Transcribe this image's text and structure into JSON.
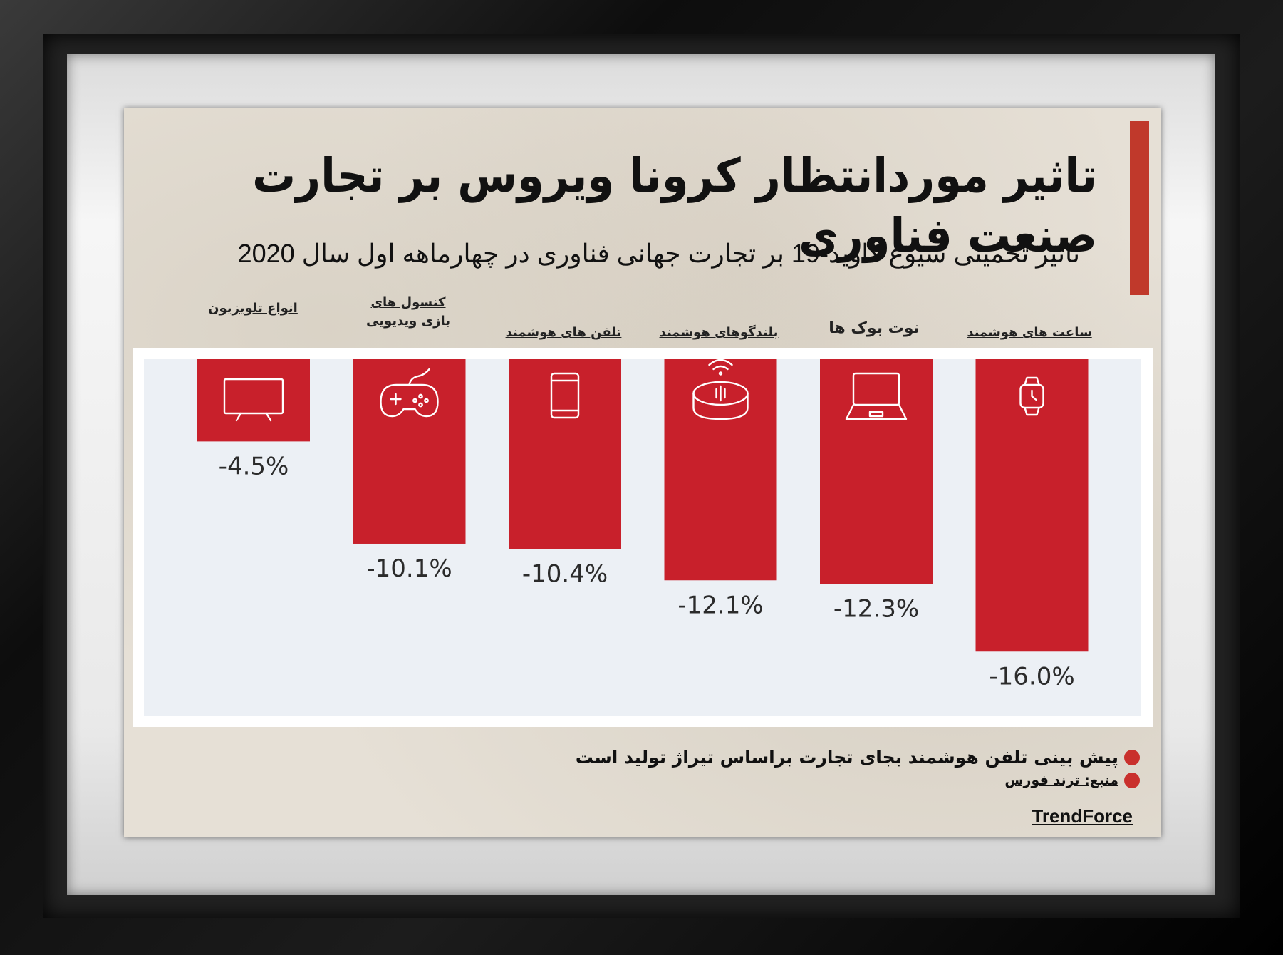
{
  "title": "تاثیر موردانتظار کرونا ویروس بر تجارت صنعت فناوری",
  "subtitle": "تاثیر تخمینی شیوع کاوید-19 بر تجارت جهانی فناوری در چهارماهه اول سال 2020",
  "colors": {
    "bar": "#c8202b",
    "accent": "#c0392b",
    "plot_bg": "#ecf0f5"
  },
  "chart_data": {
    "type": "bar",
    "categories": [
      "انواع تلویزیون",
      "کنسول های بازی ویدیویی",
      "تلفن های هوشمند",
      "بلندگوهای هوشمند",
      "نوت بوک ها",
      "ساعت های هوشمند"
    ],
    "category_lines": [
      [
        "انواع تلویزیون"
      ],
      [
        "کنسول های",
        "بازی ویدیویی"
      ],
      [
        "تلفن های هوشمند"
      ],
      [
        "بلندگوهای هوشمند"
      ],
      [
        "نوت بوک ها"
      ],
      [
        "ساعت های هوشمند"
      ]
    ],
    "icons": [
      "tv-icon",
      "gamepad-icon",
      "smartphone-icon",
      "smart-speaker-icon",
      "laptop-icon",
      "smartwatch-icon"
    ],
    "values": [
      -4.5,
      -10.1,
      -10.4,
      -12.1,
      -12.3,
      -16.0
    ],
    "value_labels": [
      "-4.5%",
      "-10.1%",
      "-10.4%",
      "-12.1%",
      "-12.3%",
      "-16.0%"
    ],
    "ylim": [
      -19.5,
      0
    ],
    "grid": false
  },
  "notes": {
    "note1": "پیش بینی تلفن هوشمند بجای تجارت براساس تیراژ تولید است",
    "note2": "منبع: ترند فورس",
    "source_en": "TrendForce"
  }
}
